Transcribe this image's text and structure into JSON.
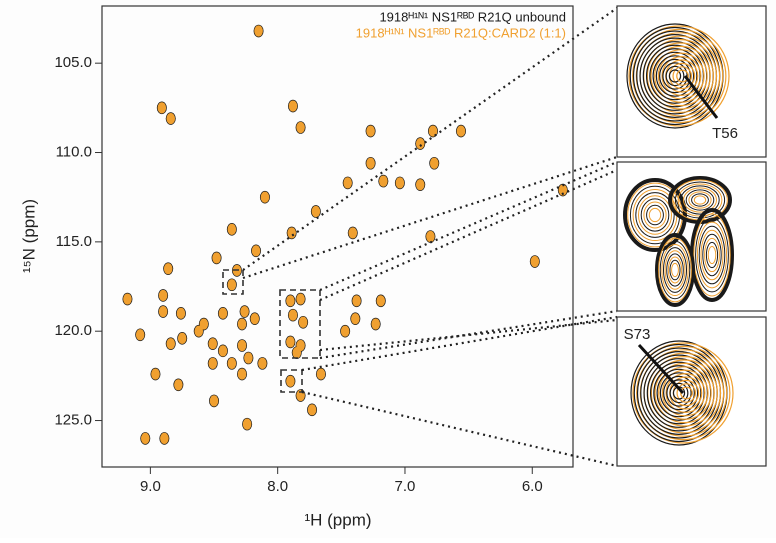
{
  "chart_data": {
    "type": "scatter",
    "x_label": "¹H (ppm)",
    "y_label": "¹⁵N (ppm)",
    "xlim": [
      9.38,
      5.68
    ],
    "ylim": [
      101.8,
      127.6
    ],
    "xticks": [
      {
        "value": 9,
        "label": "9.0"
      },
      {
        "value": 8,
        "label": "8.0"
      },
      {
        "value": 7,
        "label": "7.0"
      },
      {
        "value": 6,
        "label": "6.0"
      }
    ],
    "yticks": [
      {
        "value": 105,
        "label": "105.0"
      },
      {
        "value": 110,
        "label": "110.0"
      },
      {
        "value": 115,
        "label": "115.0"
      },
      {
        "value": 120,
        "label": "120.0"
      },
      {
        "value": 125,
        "label": "125.0"
      }
    ],
    "x": [
      8.15,
      8.91,
      8.84,
      7.88,
      7.82,
      7.27,
      6.78,
      6.88,
      6.56,
      6.77,
      7.45,
      7.17,
      7.04,
      6.88,
      7.27,
      8.1,
      7.7,
      8.36,
      8.17,
      8.48,
      7.89,
      7.41,
      6.8,
      5.98,
      5.76,
      8.86,
      8.32,
      8.36,
      9.18,
      8.9,
      8.9,
      8.76,
      8.58,
      8.43,
      8.28,
      8.26,
      8.18,
      7.9,
      7.82,
      7.88,
      7.8,
      7.9,
      7.82,
      7.85,
      7.38,
      7.39,
      7.19,
      7.47,
      7.23,
      8.84,
      8.75,
      8.62,
      9.08,
      8.51,
      8.43,
      8.28,
      8.23,
      8.51,
      8.36,
      8.96,
      8.78,
      8.28,
      8.12,
      7.9,
      7.66,
      7.82,
      7.73,
      8.5,
      8.24,
      9.04,
      8.89
    ],
    "series": [
      {
        "name": "1918ᴴ¹ᴺ¹ NS1ᴿᴮᴰ R21Q unbound",
        "color": "#1a1a1a",
        "values": [
          103.2,
          107.5,
          108.1,
          107.4,
          108.6,
          108.8,
          108.8,
          109.5,
          108.8,
          110.6,
          111.7,
          111.6,
          111.7,
          111.8,
          110.6,
          112.5,
          113.3,
          114.3,
          115.5,
          115.9,
          114.5,
          114.5,
          114.7,
          116.1,
          112.1,
          116.5,
          116.6,
          117.4,
          118.2,
          118.0,
          118.9,
          119.0,
          119.6,
          119.0,
          119.6,
          118.9,
          119.3,
          118.3,
          118.2,
          119.1,
          119.5,
          120.6,
          120.8,
          121.2,
          118.3,
          119.3,
          118.3,
          120.0,
          119.6,
          120.7,
          120.4,
          120.0,
          120.2,
          120.7,
          121.1,
          120.8,
          121.5,
          121.8,
          121.8,
          122.4,
          123.0,
          122.4,
          121.8,
          122.8,
          122.4,
          123.6,
          124.4,
          123.9,
          125.2,
          126.0,
          126.0
        ]
      },
      {
        "name": "1918ᴴ¹ᴺ¹ NS1ᴿᴮᴰ R21Q:CARD2 (1:1)",
        "color": "#f0a030",
        "values": [
          103.2,
          107.5,
          108.1,
          107.4,
          108.6,
          108.8,
          108.8,
          109.5,
          108.8,
          110.6,
          111.7,
          111.6,
          111.7,
          111.8,
          110.6,
          112.5,
          113.3,
          114.3,
          115.5,
          115.9,
          114.5,
          114.5,
          114.7,
          116.1,
          112.1,
          116.5,
          116.6,
          117.4,
          118.2,
          118.0,
          118.9,
          119.0,
          119.6,
          119.0,
          119.6,
          118.9,
          119.3,
          118.3,
          118.2,
          119.1,
          119.5,
          120.6,
          120.8,
          121.2,
          118.3,
          119.3,
          118.3,
          120.0,
          119.6,
          120.7,
          120.4,
          120.0,
          120.2,
          120.7,
          121.1,
          120.8,
          121.5,
          121.8,
          121.8,
          122.4,
          123.0,
          122.4,
          121.8,
          122.8,
          122.4,
          123.6,
          124.4,
          123.9,
          125.2,
          126.0,
          126.0
        ]
      }
    ],
    "insets": [
      {
        "label": "T56"
      },
      {
        "label": ""
      },
      {
        "label": "S73"
      }
    ]
  }
}
